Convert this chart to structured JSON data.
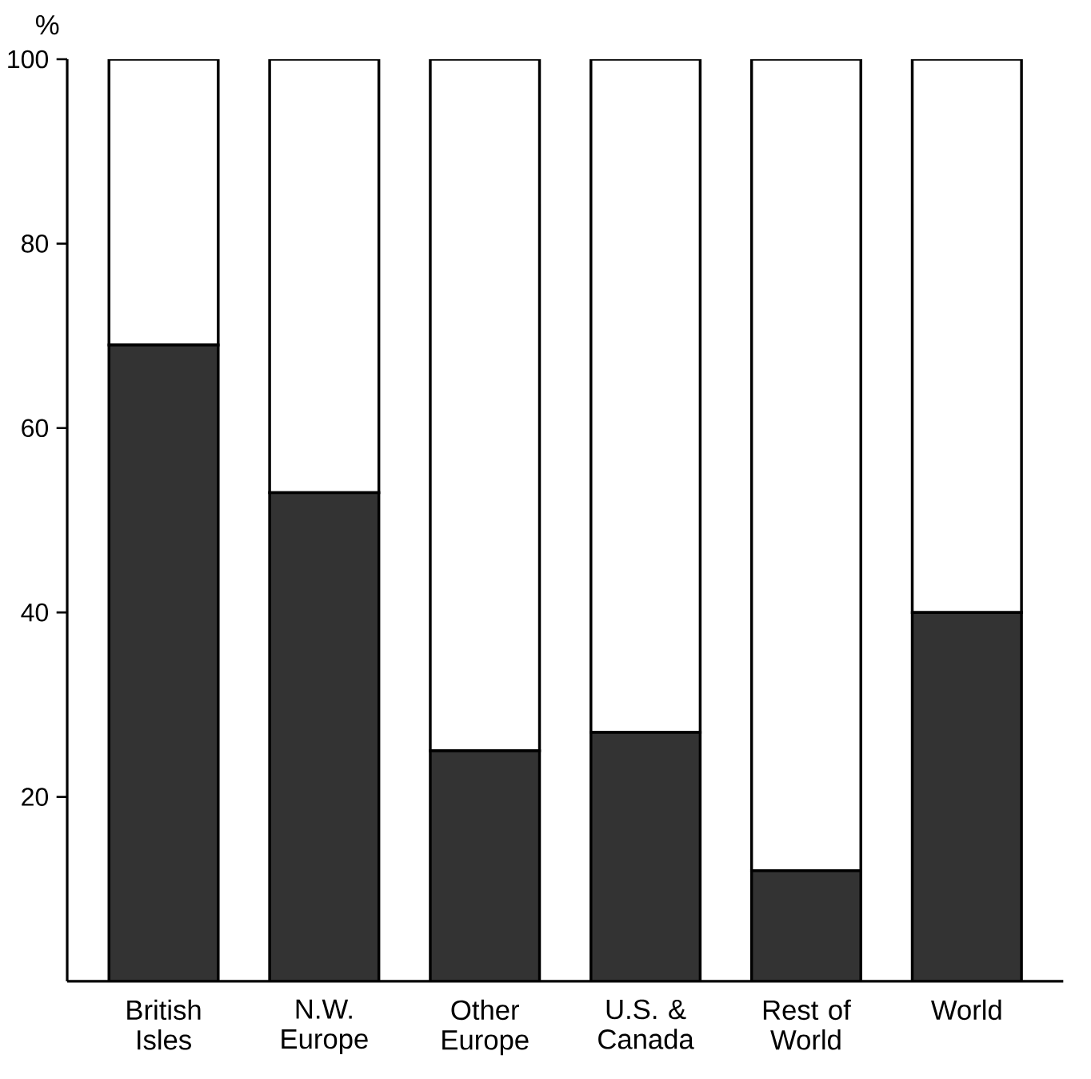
{
  "chart_data": {
    "type": "bar",
    "stacked": true,
    "ylabel": "%",
    "categories": [
      "British Isles",
      "N.W. Europe",
      "Other Europe",
      "U.S. & Canada",
      "Rest of World",
      "World"
    ],
    "series": [
      {
        "color": "#333333",
        "values": [
          69,
          53,
          25,
          27,
          12,
          40
        ]
      },
      {
        "color": "#ffffff",
        "values": [
          31,
          47,
          75,
          73,
          88,
          60
        ]
      }
    ],
    "ylim": [
      0,
      100
    ],
    "yticks": [
      20,
      40,
      60,
      80,
      100
    ],
    "grid": false
  }
}
